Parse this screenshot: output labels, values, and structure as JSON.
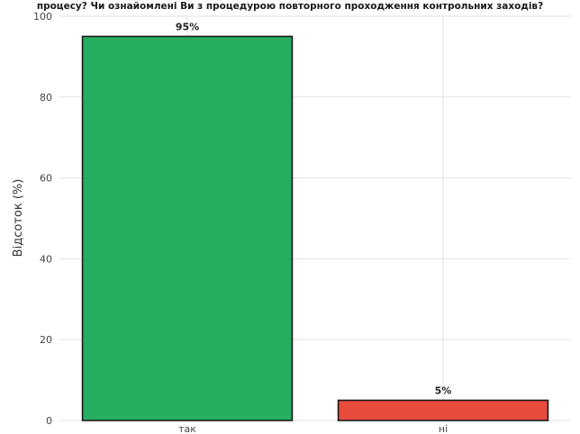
{
  "chart_data": {
    "type": "bar",
    "title": "процесу? Чи ознайомлені Ви з процедурою повторного проходження контрольних заходів?",
    "xlabel": "",
    "ylabel": "Відсоток (%)",
    "categories": [
      "так",
      "ні"
    ],
    "values": [
      95,
      5
    ],
    "data_labels": [
      "95%",
      "5%"
    ],
    "ylim": [
      0,
      100
    ],
    "yticks": [
      0,
      20,
      40,
      60,
      80,
      100
    ],
    "grid": true,
    "colors": [
      "#27ae60",
      "#e74c3c"
    ]
  }
}
